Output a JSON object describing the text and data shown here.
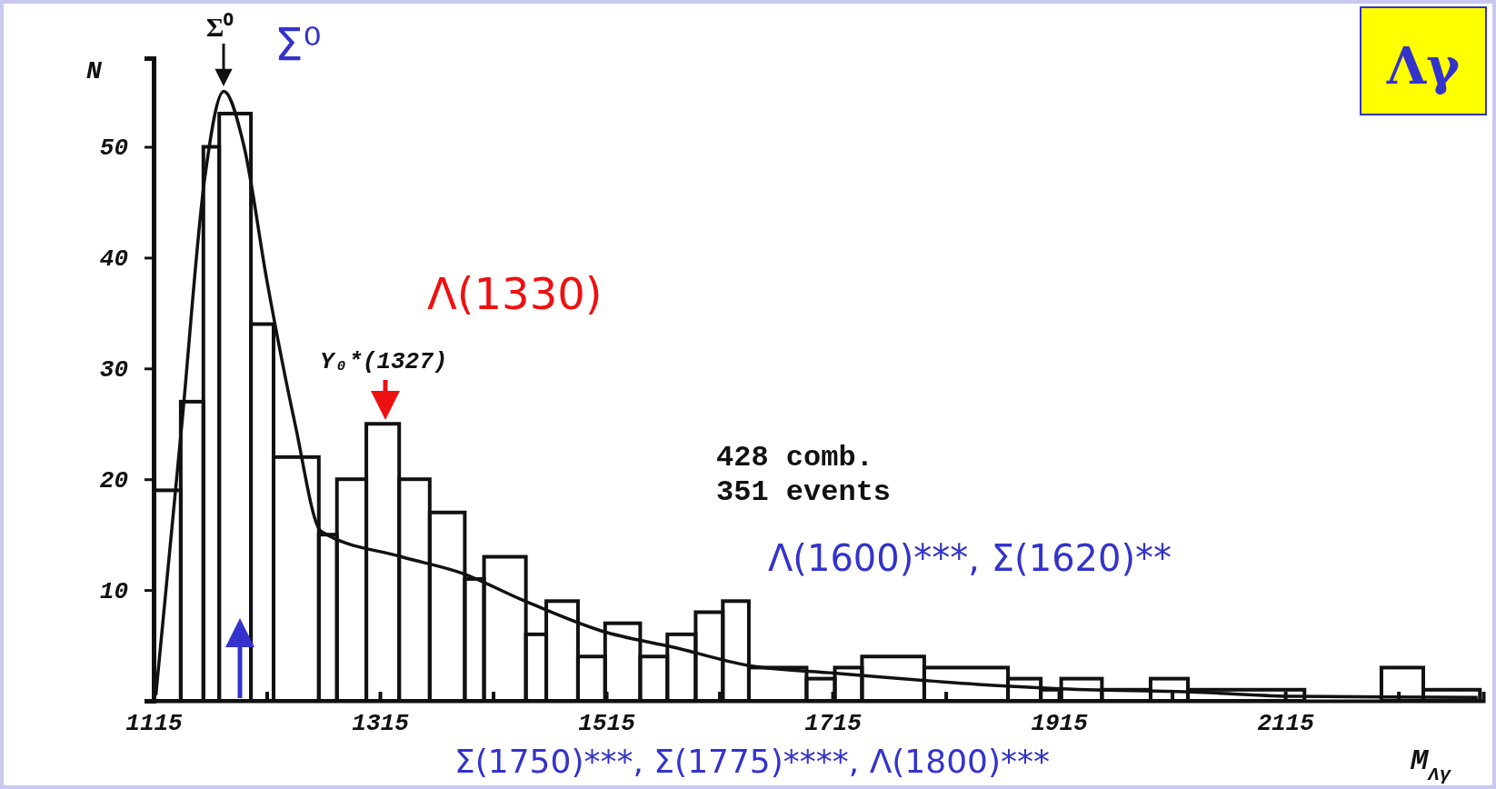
{
  "chart_data": {
    "type": "histogram",
    "title": "Λγ",
    "xlabel": "M$_{Λγ}$",
    "ylabel": "N",
    "xlim": [
      1115,
      2290
    ],
    "ylim": [
      0,
      58
    ],
    "xticks": [
      1115,
      {
        "value": 1215,
        "label": null
      },
      1315,
      {
        "value": 1415,
        "label": null
      },
      1515,
      {
        "value": 1615,
        "label": null
      },
      1715,
      {
        "value": 1815,
        "label": null
      },
      1915,
      {
        "value": 2015,
        "label": null
      },
      2115,
      {
        "value": 2215,
        "label": null
      }
    ],
    "yticks": [
      10,
      20,
      30,
      40,
      50
    ],
    "grid": false,
    "series": [
      {
        "color": "#111111",
        "bins": [
          1115,
          1139,
          1159,
          1173,
          1201,
          1221,
          1261,
          1277,
          1303,
          1332,
          1359,
          1390,
          1407,
          1444,
          1462,
          1490,
          1514,
          1545,
          1569,
          1594,
          1618,
          1641,
          1692,
          1717,
          1741,
          1796,
          1870,
          1899,
          1917,
          1953,
          1996,
          2029,
          2132,
          2200,
          2237,
          2287
        ],
        "values": [
          19,
          27,
          50,
          53,
          34,
          22,
          15,
          20,
          25,
          20,
          17,
          11,
          13,
          6,
          9,
          4,
          7,
          4,
          6,
          8,
          9,
          3,
          2,
          3,
          4,
          3,
          2,
          1,
          2,
          1,
          2,
          1,
          0,
          3,
          1
        ]
      },
      {
        "type": "line",
        "color": "#111111",
        "line_style": "solid",
        "marker": "none",
        "x": [
          1117,
          1140,
          1160,
          1177,
          1195,
          1215,
          1240,
          1263,
          1334,
          1388,
          1441,
          1511,
          1576,
          1640,
          1717,
          1857,
          1911,
          2033,
          2124,
          2285
        ],
        "values": [
          0.5,
          25,
          47,
          55,
          50,
          38,
          25,
          15.3,
          13,
          11.5,
          9.1,
          6.3,
          4.8,
          3.2,
          2.5,
          1.4,
          1.1,
          0.8,
          0.4,
          0.3
        ]
      }
    ],
    "annotations": [
      "Σ⁰",
      "Σ⁰",
      "Λ(1330)",
      "Y₀*(1327)",
      "428 comb.",
      "351 events",
      "Λ(1600)***, Σ(1620)**",
      "Σ(1750)***, Σ(1775)****, Λ(1800)***"
    ]
  }
}
